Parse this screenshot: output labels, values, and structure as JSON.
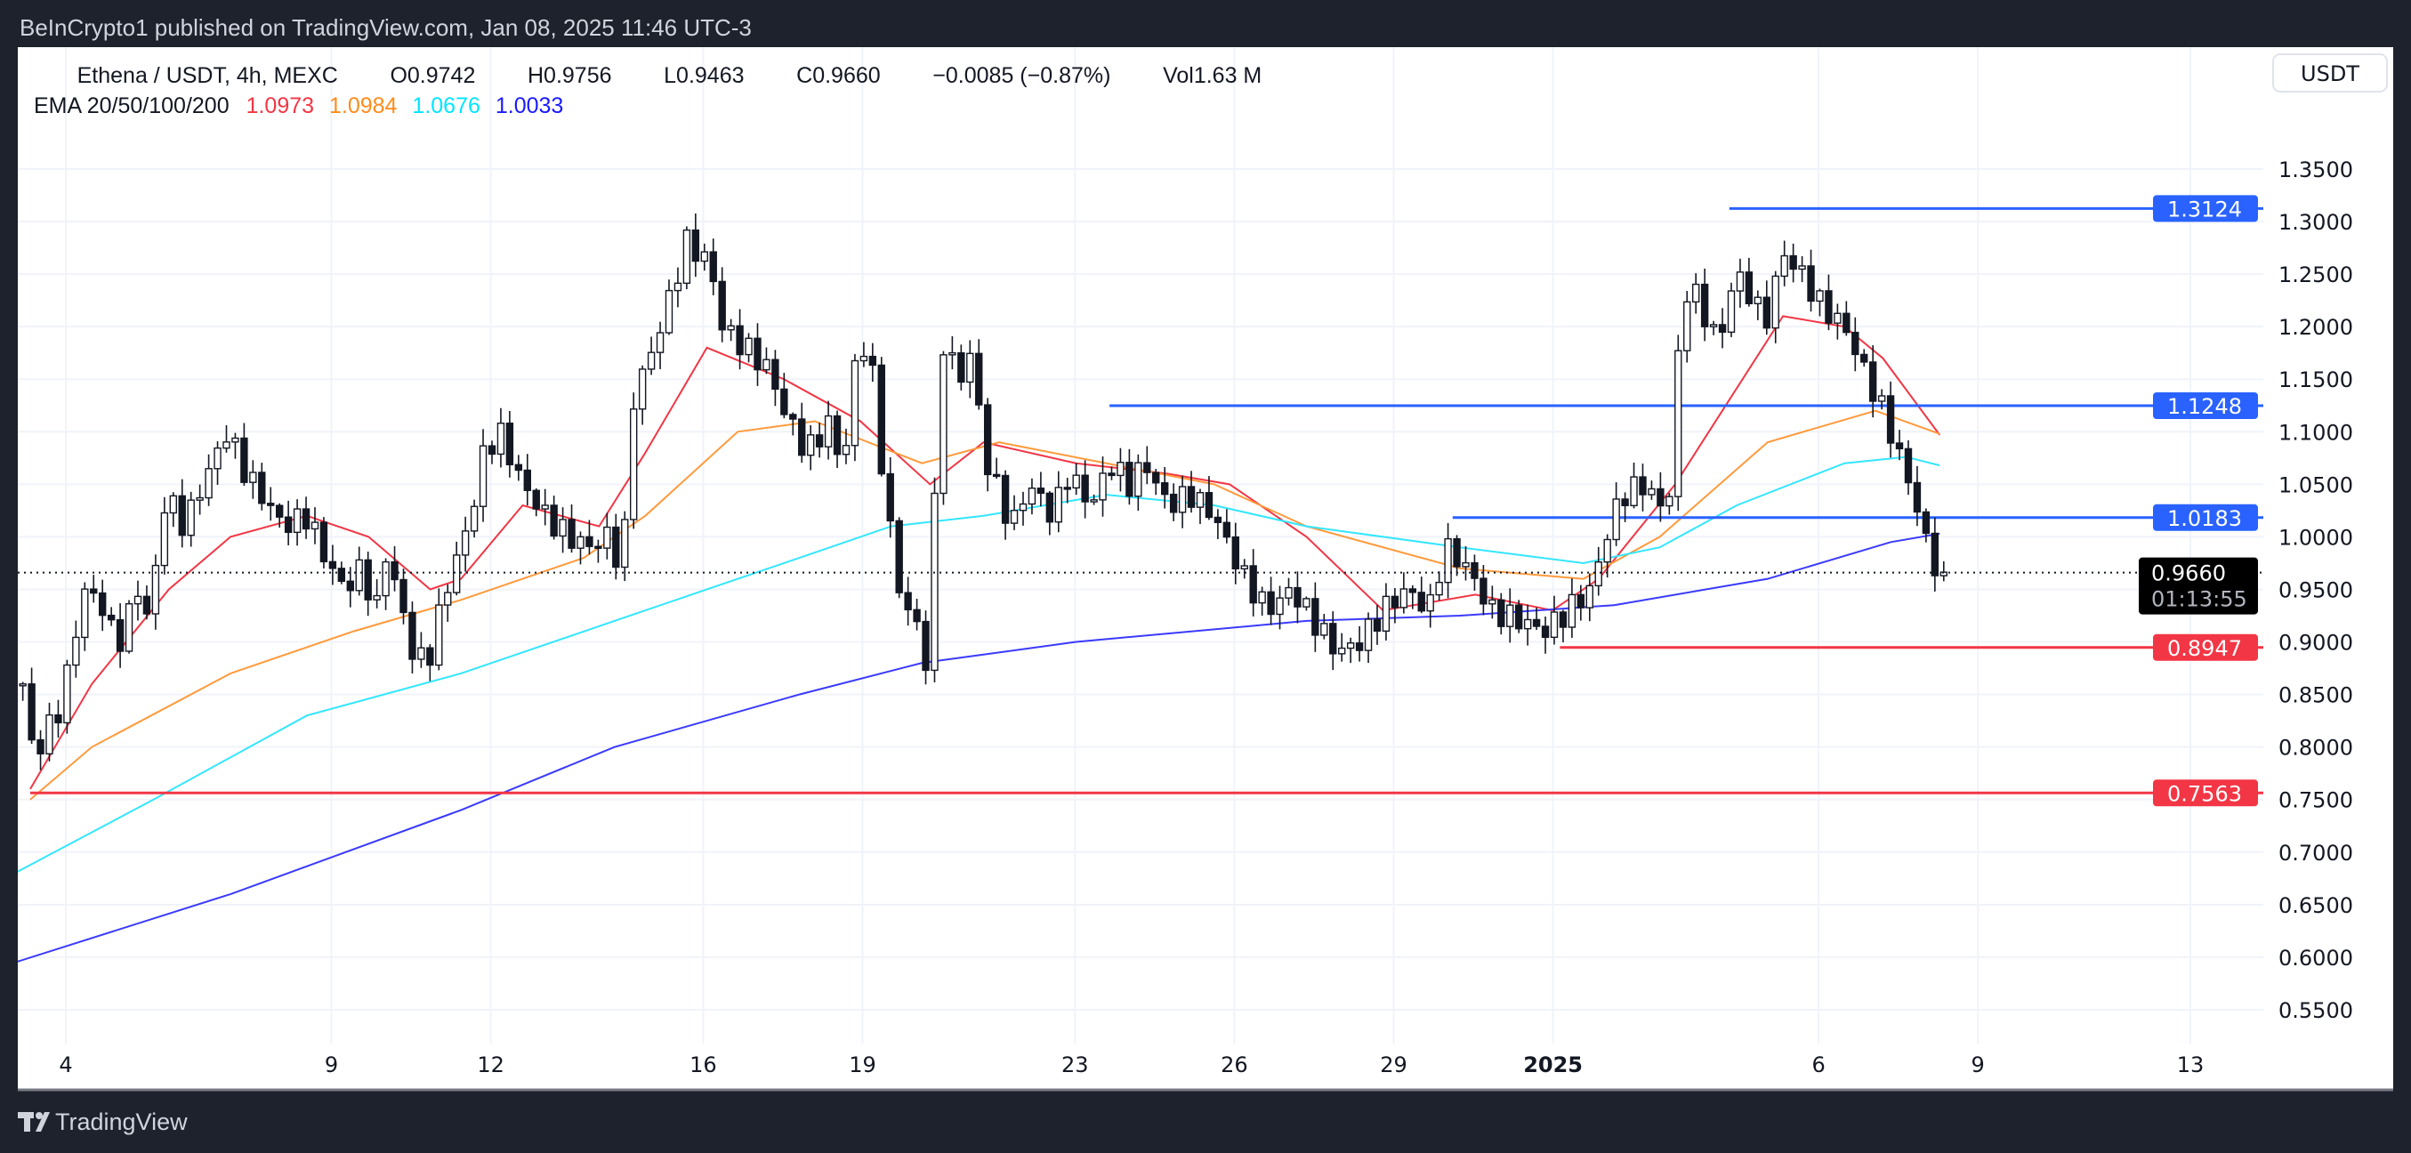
{
  "header": {
    "published": "BeInCrypto1 published on TradingView.com, Jan 08, 2025 11:46 UTC-3"
  },
  "legend": {
    "symbol": "Ethena / USDT, 4h, MEXC",
    "open": "O0.9742",
    "high": "H0.9756",
    "low": "L0.9463",
    "close": "C0.9660",
    "change": "−0.0085 (−0.87%)",
    "volume": "Vol1.63 M",
    "ema_label": "EMA 20/50/100/200",
    "ema_values": [
      {
        "value": "1.0973",
        "color": "#f23645"
      },
      {
        "value": "1.0984",
        "color": "#ff8c1a"
      },
      {
        "value": "1.0676",
        "color": "#00e5ff"
      },
      {
        "value": "1.0033",
        "color": "#1a1aff"
      }
    ]
  },
  "currency_button": "USDT",
  "current_price": {
    "value": "0.9660",
    "countdown": "01:13:55",
    "price": 0.966
  },
  "footer": {
    "brand": "TradingView"
  },
  "chart_data": {
    "type": "candlestick",
    "title": "Ethena / USDT, 4h, MEXC",
    "x_unit": "day (Dec 2024 numbering; 32 = Jan 1 2025)",
    "ylim": [
      0.52,
      1.37
    ],
    "y_ticks": [
      "1.3500",
      "1.3000",
      "1.2500",
      "1.2000",
      "1.1500",
      "1.1000",
      "1.0500",
      "1.0000",
      "0.9500",
      "0.9000",
      "0.8500",
      "0.8000",
      "0.7500",
      "0.7000",
      "0.6500",
      "0.6000",
      "0.5500"
    ],
    "x_ticks": [
      {
        "day": 4,
        "label": "4"
      },
      {
        "day": 9,
        "label": "9"
      },
      {
        "day": 12,
        "label": "12"
      },
      {
        "day": 16,
        "label": "16"
      },
      {
        "day": 19,
        "label": "19"
      },
      {
        "day": 23,
        "label": "23"
      },
      {
        "day": 26,
        "label": "26"
      },
      {
        "day": 29,
        "label": "29"
      },
      {
        "day": 32,
        "label": "2025",
        "bold": true
      },
      {
        "day": 37,
        "label": "6"
      },
      {
        "day": 40,
        "label": "9"
      },
      {
        "day": 44,
        "label": "13"
      }
    ],
    "price_path": [
      [
        3.19,
        0.86
      ],
      [
        3.39,
        0.79
      ],
      [
        3.91,
        0.84
      ],
      [
        4.35,
        0.95
      ],
      [
        4.78,
        0.93
      ],
      [
        4.93,
        0.89
      ],
      [
        5.36,
        0.95
      ],
      [
        5.56,
        0.92
      ],
      [
        5.88,
        1.04
      ],
      [
        6.23,
        1.01
      ],
      [
        6.75,
        1.07
      ],
      [
        7.04,
        1.1
      ],
      [
        7.39,
        1.06
      ],
      [
        7.82,
        1.03
      ],
      [
        8.11,
        1.01
      ],
      [
        8.54,
        1.02
      ],
      [
        8.98,
        0.97
      ],
      [
        9.27,
        0.95
      ],
      [
        9.56,
        0.97
      ],
      [
        9.85,
        0.93
      ],
      [
        9.99,
        0.99
      ],
      [
        10.34,
        0.93
      ],
      [
        10.57,
        0.88
      ],
      [
        10.86,
        0.89
      ],
      [
        11.15,
        0.95
      ],
      [
        11.44,
        0.99
      ],
      [
        11.67,
        1.03
      ],
      [
        11.87,
        1.08
      ],
      [
        12.16,
        1.1
      ],
      [
        12.6,
        1.05
      ],
      [
        13.03,
        1.02
      ],
      [
        13.46,
        1.0
      ],
      [
        13.9,
        0.99
      ],
      [
        14.19,
        1.0
      ],
      [
        14.48,
        0.97
      ],
      [
        14.68,
        1.13
      ],
      [
        15.2,
        1.2
      ],
      [
        15.69,
        1.28
      ],
      [
        16.13,
        1.26
      ],
      [
        16.36,
        1.2
      ],
      [
        16.79,
        1.18
      ],
      [
        17.23,
        1.16
      ],
      [
        17.52,
        1.12
      ],
      [
        17.95,
        1.08
      ],
      [
        18.39,
        1.11
      ],
      [
        18.62,
        1.06
      ],
      [
        18.88,
        1.17
      ],
      [
        19.11,
        1.19
      ],
      [
        19.4,
        1.05
      ],
      [
        19.69,
        0.95
      ],
      [
        19.98,
        0.92
      ],
      [
        20.21,
        0.88
      ],
      [
        20.35,
        1.02
      ],
      [
        20.47,
        1.19
      ],
      [
        20.85,
        1.15
      ],
      [
        21.05,
        1.18
      ],
      [
        21.28,
        1.08
      ],
      [
        21.57,
        1.04
      ],
      [
        21.8,
        1.01
      ],
      [
        22.15,
        1.05
      ],
      [
        22.58,
        1.02
      ],
      [
        22.87,
        1.06
      ],
      [
        23.31,
        1.03
      ],
      [
        23.65,
        1.07
      ],
      [
        24.03,
        1.05
      ],
      [
        24.32,
        1.07
      ],
      [
        24.75,
        1.03
      ],
      [
        25.19,
        1.04
      ],
      [
        25.62,
        1.02
      ],
      [
        25.91,
        0.99
      ],
      [
        26.2,
        0.96
      ],
      [
        26.63,
        0.93
      ],
      [
        27.07,
        0.95
      ],
      [
        27.5,
        0.92
      ],
      [
        27.94,
        0.89
      ],
      [
        28.37,
        0.9
      ],
      [
        28.8,
        0.93
      ],
      [
        29.24,
        0.95
      ],
      [
        29.67,
        0.93
      ],
      [
        29.96,
        0.99
      ],
      [
        30.4,
        0.97
      ],
      [
        30.83,
        0.93
      ],
      [
        31.41,
        0.92
      ],
      [
        31.84,
        0.91
      ],
      [
        32.28,
        0.93
      ],
      [
        32.71,
        0.95
      ],
      [
        33.0,
        1.0
      ],
      [
        33.29,
        1.04
      ],
      [
        33.72,
        1.05
      ],
      [
        34.16,
        1.02
      ],
      [
        34.3,
        1.13
      ],
      [
        34.45,
        1.23
      ],
      [
        34.59,
        1.24
      ],
      [
        34.94,
        1.2
      ],
      [
        35.17,
        1.19
      ],
      [
        35.4,
        1.25
      ],
      [
        35.75,
        1.23
      ],
      [
        35.98,
        1.2
      ],
      [
        36.33,
        1.27
      ],
      [
        36.68,
        1.25
      ],
      [
        37.05,
        1.22
      ],
      [
        37.49,
        1.2
      ],
      [
        37.84,
        1.16
      ],
      [
        38.21,
        1.12
      ],
      [
        38.5,
        1.08
      ],
      [
        38.79,
        1.04
      ],
      [
        38.99,
        1.0
      ],
      [
        39.22,
        0.97
      ],
      [
        39.37,
        0.966
      ]
    ],
    "series": [
      {
        "name": "EMA 20",
        "color": "#f23645",
        "points": [
          [
            3.33,
            0.76
          ],
          [
            4.49,
            0.86
          ],
          [
            5.94,
            0.95
          ],
          [
            7.1,
            1.0
          ],
          [
            8.54,
            1.02
          ],
          [
            9.7,
            1.0
          ],
          [
            10.86,
            0.95
          ],
          [
            11.44,
            0.96
          ],
          [
            12.6,
            1.03
          ],
          [
            14.04,
            1.01
          ],
          [
            14.91,
            1.08
          ],
          [
            16.07,
            1.18
          ],
          [
            17.52,
            1.15
          ],
          [
            18.96,
            1.11
          ],
          [
            20.27,
            1.05
          ],
          [
            21.28,
            1.09
          ],
          [
            23.02,
            1.07
          ],
          [
            24.75,
            1.06
          ],
          [
            25.91,
            1.05
          ],
          [
            27.36,
            1.0
          ],
          [
            28.8,
            0.93
          ],
          [
            30.54,
            0.945
          ],
          [
            31.99,
            0.93
          ],
          [
            32.86,
            0.96
          ],
          [
            34.3,
            1.05
          ],
          [
            36.33,
            1.21
          ],
          [
            37.49,
            1.2
          ],
          [
            38.21,
            1.17
          ],
          [
            39.28,
            1.097
          ]
        ]
      },
      {
        "name": "EMA 50",
        "color": "#ff9a3c",
        "points": [
          [
            3.33,
            0.75
          ],
          [
            4.49,
            0.8
          ],
          [
            7.1,
            0.87
          ],
          [
            9.41,
            0.91
          ],
          [
            11.44,
            0.94
          ],
          [
            13.75,
            0.98
          ],
          [
            14.91,
            1.02
          ],
          [
            16.65,
            1.1
          ],
          [
            18.1,
            1.11
          ],
          [
            20.12,
            1.07
          ],
          [
            21.57,
            1.09
          ],
          [
            23.59,
            1.07
          ],
          [
            25.62,
            1.05
          ],
          [
            27.36,
            1.01
          ],
          [
            30.25,
            0.97
          ],
          [
            32.57,
            0.96
          ],
          [
            34.01,
            1.0
          ],
          [
            36.04,
            1.09
          ],
          [
            38.07,
            1.12
          ],
          [
            39.28,
            1.098
          ]
        ]
      },
      {
        "name": "EMA 100",
        "color": "#33e6ff",
        "points": [
          [
            3.04,
            0.68
          ],
          [
            5.65,
            0.75
          ],
          [
            8.54,
            0.83
          ],
          [
            11.44,
            0.87
          ],
          [
            14.91,
            0.93
          ],
          [
            17.81,
            0.98
          ],
          [
            19.54,
            1.01
          ],
          [
            21.28,
            1.02
          ],
          [
            23.59,
            1.04
          ],
          [
            25.62,
            1.03
          ],
          [
            27.36,
            1.01
          ],
          [
            30.25,
            0.99
          ],
          [
            32.57,
            0.975
          ],
          [
            34.01,
            0.99
          ],
          [
            35.46,
            1.03
          ],
          [
            37.49,
            1.07
          ],
          [
            38.65,
            1.076
          ],
          [
            39.28,
            1.068
          ]
        ]
      },
      {
        "name": "EMA 200",
        "color": "#3a3aff",
        "points": [
          [
            3.04,
            0.595
          ],
          [
            7.1,
            0.66
          ],
          [
            11.44,
            0.74
          ],
          [
            14.33,
            0.8
          ],
          [
            17.81,
            0.85
          ],
          [
            20.12,
            0.88
          ],
          [
            23.02,
            0.9
          ],
          [
            27.36,
            0.92
          ],
          [
            30.25,
            0.925
          ],
          [
            33.15,
            0.935
          ],
          [
            36.04,
            0.96
          ],
          [
            38.36,
            0.995
          ],
          [
            39.28,
            1.003
          ]
        ]
      }
    ],
    "levels": [
      {
        "value": 1.3124,
        "label": "1.3124",
        "color": "#2962ff",
        "from_day": 35.32
      },
      {
        "value": 1.1248,
        "label": "1.1248",
        "color": "#2962ff",
        "from_day": 23.65
      },
      {
        "value": 1.0183,
        "label": "1.0183",
        "color": "#2962ff",
        "from_day": 30.11
      },
      {
        "value": 0.8947,
        "label": "0.8947",
        "color": "#f23645",
        "from_day": 32.13
      },
      {
        "value": 0.7563,
        "label": "0.7563",
        "color": "#f23645",
        "from_day": 3.33
      }
    ]
  }
}
